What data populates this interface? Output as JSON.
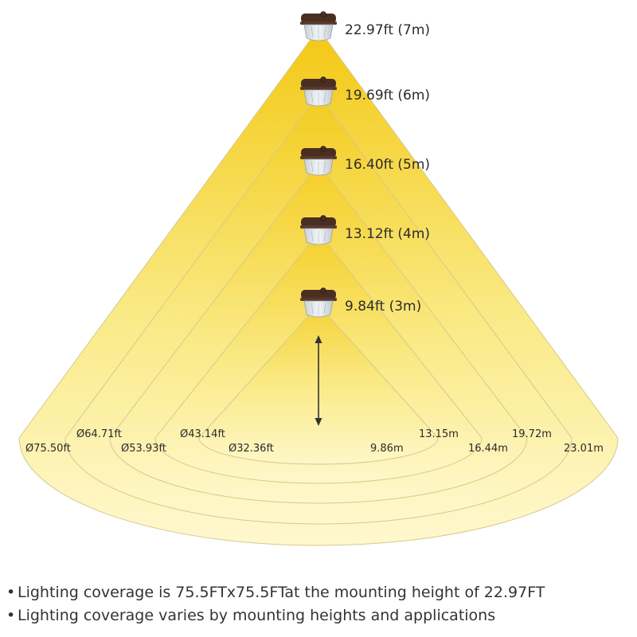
{
  "colors": {
    "beam_top": "#f3c813",
    "beam_bottom": "#fff8cf",
    "ring_stroke": "#d6c98c",
    "fixture_body": "#4a2e22",
    "lens": "#e8ecef",
    "arrow": "#333333"
  },
  "fixtures": [
    {
      "height_label": "22.97ft (7m)"
    },
    {
      "height_label": "19.69ft (6m)"
    },
    {
      "height_label": "16.40ft (5m)"
    },
    {
      "height_label": "13.12ft (4m)"
    },
    {
      "height_label": "9.84ft (3m)"
    }
  ],
  "coverage": [
    {
      "diameter_label": "Ø75.50ft",
      "radius_label": "23.01m"
    },
    {
      "diameter_label": "Ø64.71ft",
      "radius_label": "19.72m"
    },
    {
      "diameter_label": "Ø53.93ft",
      "radius_label": "16.44m"
    },
    {
      "diameter_label": "Ø43.14ft",
      "radius_label": "13.15m"
    },
    {
      "diameter_label": "Ø32.36ft",
      "radius_label": "9.86m"
    }
  ],
  "notes": [
    "Lighting coverage is 75.5FTx75.5FTat the mounting height of 22.97FT",
    "Lighting coverage varies by mounting heights and applications"
  ],
  "bullet_glyph": "•"
}
